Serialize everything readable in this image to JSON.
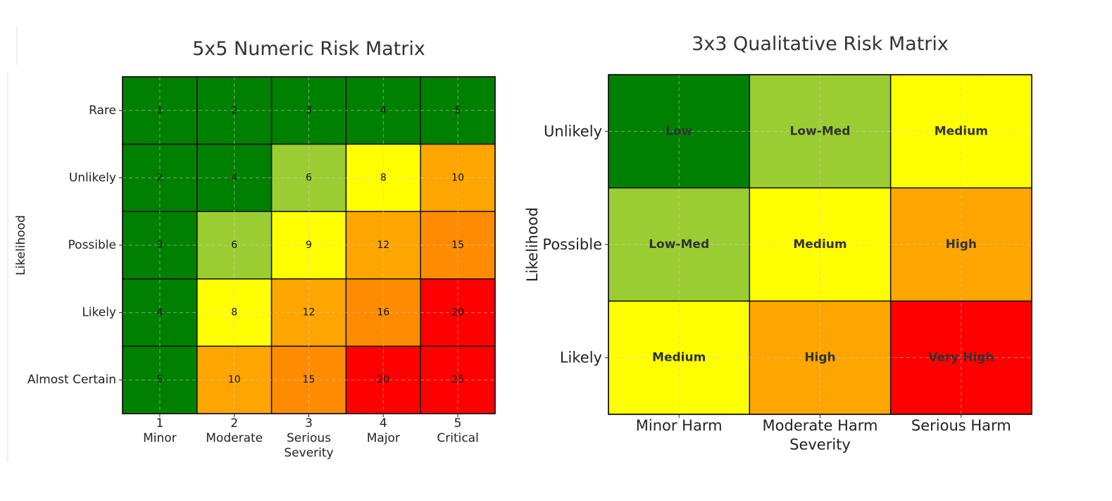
{
  "chart_data": [
    {
      "type": "heatmap",
      "title": "5x5 Numeric Risk Matrix",
      "xlabel": "Severity",
      "ylabel": "Likelihood",
      "x_ticks": [
        "1",
        "2",
        "3",
        "4",
        "5"
      ],
      "x_categories": [
        "Minor",
        "Moderate",
        "Serious",
        "Major",
        "Critical"
      ],
      "y_categories": [
        "Rare",
        "Unlikely",
        "Possible",
        "Likely",
        "Almost Certain"
      ],
      "values": [
        [
          1,
          2,
          3,
          4,
          5
        ],
        [
          2,
          4,
          6,
          8,
          10
        ],
        [
          3,
          6,
          9,
          12,
          15
        ],
        [
          4,
          8,
          12,
          16,
          20
        ],
        [
          5,
          10,
          15,
          20,
          25
        ]
      ],
      "colors": [
        [
          "#008000",
          "#008000",
          "#008000",
          "#008000",
          "#008000"
        ],
        [
          "#008000",
          "#008000",
          "#9acd32",
          "#ffff00",
          "#ffa500"
        ],
        [
          "#008000",
          "#9acd32",
          "#ffff00",
          "#ffa500",
          "#ff8c00"
        ],
        [
          "#008000",
          "#ffff00",
          "#ffa500",
          "#ff8c00",
          "#ff0000"
        ],
        [
          "#008000",
          "#ffa500",
          "#ff8c00",
          "#ff0000",
          "#ff0000"
        ]
      ],
      "grid": true
    },
    {
      "type": "heatmap",
      "title": "3x3 Qualitative Risk Matrix",
      "xlabel": "Severity",
      "ylabel": "Likelihood",
      "x_categories": [
        "Minor Harm",
        "Moderate Harm",
        "Serious Harm"
      ],
      "y_categories": [
        "Unlikely",
        "Possible",
        "Likely"
      ],
      "values": [
        [
          "Low",
          "Low-Med",
          "Medium"
        ],
        [
          "Low-Med",
          "Medium",
          "High"
        ],
        [
          "Medium",
          "High",
          "Very High"
        ]
      ],
      "colors": [
        [
          "#008000",
          "#9acd32",
          "#ffff00"
        ],
        [
          "#9acd32",
          "#ffff00",
          "#ffa500"
        ],
        [
          "#ffff00",
          "#ffa500",
          "#ff0000"
        ]
      ],
      "grid": true
    }
  ]
}
